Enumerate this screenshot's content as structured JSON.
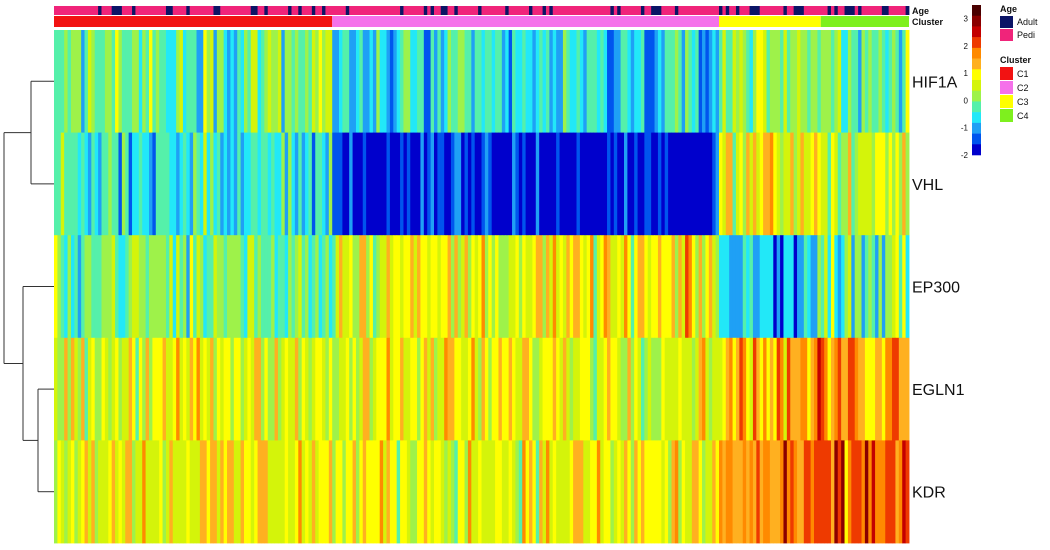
{
  "chart_data": {
    "type": "heatmap",
    "genes": [
      "HIF1A",
      "VHL",
      "EP300",
      "EGLN1",
      "KDR"
    ],
    "n_samples": 252,
    "cluster_groups": [
      {
        "name": "C1",
        "count": 82
      },
      {
        "name": "C2",
        "count": 114
      },
      {
        "name": "C3",
        "count": 30
      },
      {
        "name": "C4",
        "count": 26
      }
    ],
    "cluster_bar_label": "Cluster",
    "age_bar_label": "Age",
    "age_levels": [
      "Adult",
      "Pedi"
    ],
    "color_scale": {
      "min": -2,
      "max": 3.5,
      "ticks": [
        "3",
        "2",
        "1",
        "0",
        "-1",
        "-2"
      ],
      "tick_values": [
        3,
        2,
        1,
        0,
        -1,
        -2
      ],
      "colors": [
        "#0000cc",
        "#0055ee",
        "#1fa0f5",
        "#22e8f8",
        "#55f0aa",
        "#9ef24a",
        "#d4f40a",
        "#ffff00",
        "#ffb020",
        "#ff8a00",
        "#ee3a00",
        "#c40000",
        "#8a0000",
        "#4a0000"
      ]
    },
    "group_profiles": {
      "HIF1A": {
        "C1": 0.0,
        "C2": -0.7,
        "C3": 0.2,
        "C4": 0.0
      },
      "VHL": {
        "C1": -0.5,
        "C2": -1.8,
        "C3": 0.9,
        "C4": 0.4
      },
      "EP300": {
        "C1": 0.0,
        "C2": 0.8,
        "C3": -0.8,
        "C4": 0.0
      },
      "EGLN1": {
        "C1": 0.7,
        "C2": 0.8,
        "C3": 1.4,
        "C4": 1.6
      },
      "KDR": {
        "C1": 0.9,
        "C2": 0.8,
        "C3": 1.6,
        "C4": 2.0
      }
    },
    "dendrogram": [
      "HIF1A",
      "VHL",
      "EP300",
      "EGLN1",
      "KDR"
    ]
  },
  "legend": {
    "age_title": "Age",
    "age_items": [
      {
        "label": "Adult",
        "color": "#0b1466"
      },
      {
        "label": "Pedi",
        "color": "#f0247a"
      }
    ],
    "cluster_title": "Cluster",
    "cluster_items": [
      {
        "label": "C1",
        "color": "#f21212"
      },
      {
        "label": "C2",
        "color": "#f571ea"
      },
      {
        "label": "C3",
        "color": "#ffff00"
      },
      {
        "label": "C4",
        "color": "#7ef01e"
      }
    ]
  }
}
